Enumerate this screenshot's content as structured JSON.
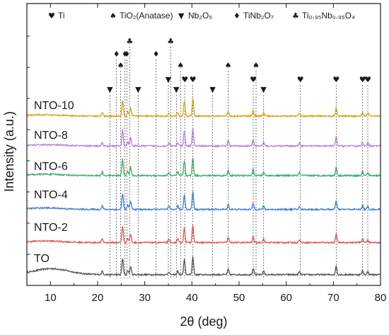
{
  "chart_data": {
    "type": "line",
    "xlabel": "2θ (deg)",
    "ylabel": "Intensity (a.u.)",
    "xlim": [
      5,
      80
    ],
    "xticks": [
      10,
      20,
      30,
      40,
      50,
      60,
      70,
      80
    ],
    "y_tick_labels_shown": false,
    "legend": [
      {
        "symbol": "♥",
        "label": "Ti"
      },
      {
        "symbol": "♠",
        "label": "TiO₂(Anatase)"
      },
      {
        "symbol": "▼",
        "label": "Nb₂O₅"
      },
      {
        "symbol": "♦",
        "label": "TiNb₂O₇"
      },
      {
        "symbol": "♣",
        "label": "Ti₀.₉₅Nb₀.₉₅O₄"
      }
    ],
    "legend_placement": "top",
    "series": [
      {
        "name": "TO",
        "color": "#555555",
        "offset": 0,
        "baseline": 1.0
      },
      {
        "name": "NTO-2",
        "color": "#e05555",
        "offset": 1,
        "baseline": 0.6
      },
      {
        "name": "NTO-4",
        "color": "#3a7fd6",
        "offset": 2,
        "baseline": 0.55
      },
      {
        "name": "NTO-6",
        "color": "#3daa6a",
        "offset": 3,
        "baseline": 0.5
      },
      {
        "name": "NTO-8",
        "color": "#b57ee0",
        "offset": 4,
        "baseline": 0.45
      },
      {
        "name": "NTO-10",
        "color": "#d4a418",
        "offset": 5,
        "baseline": 0.5
      }
    ],
    "peaks": [
      {
        "x": 21.0,
        "h": 1.2
      },
      {
        "x": 25.3,
        "h": 5.5
      },
      {
        "x": 26.4,
        "h": 1.4
      },
      {
        "x": 27.0,
        "h": 2.8
      },
      {
        "x": 35.1,
        "h": 1.0
      },
      {
        "x": 37.0,
        "h": 1.2
      },
      {
        "x": 38.4,
        "h": 5.0
      },
      {
        "x": 40.2,
        "h": 6.0
      },
      {
        "x": 47.7,
        "h": 1.8
      },
      {
        "x": 53.0,
        "h": 2.0
      },
      {
        "x": 55.2,
        "h": 1.2
      },
      {
        "x": 62.8,
        "h": 1.0
      },
      {
        "x": 70.6,
        "h": 3.0
      },
      {
        "x": 76.2,
        "h": 1.4
      },
      {
        "x": 77.3,
        "h": 1.0
      }
    ],
    "reference_markers": [
      {
        "x": 22.6,
        "symbol": "▼",
        "level": 0
      },
      {
        "x": 24.0,
        "symbol": "♦",
        "level": 3
      },
      {
        "x": 24.9,
        "symbol": "♠",
        "level": 2
      },
      {
        "x": 25.8,
        "symbol": "♦",
        "level": 3
      },
      {
        "x": 26.2,
        "symbol": "♦",
        "level": 3
      },
      {
        "x": 26.8,
        "symbol": "♣",
        "level": 4
      },
      {
        "x": 28.6,
        "symbol": "▼",
        "level": 0
      },
      {
        "x": 32.4,
        "symbol": "♦",
        "level": 3
      },
      {
        "x": 35.0,
        "symbol": "▼",
        "level": 1
      },
      {
        "x": 35.5,
        "symbol": "♣",
        "level": 4
      },
      {
        "x": 36.7,
        "symbol": "▼",
        "level": 0
      },
      {
        "x": 37.6,
        "symbol": "♠",
        "level": 2
      },
      {
        "x": 38.5,
        "symbol": "♥",
        "level": 1
      },
      {
        "x": 40.2,
        "symbol": "♥",
        "level": 1
      },
      {
        "x": 44.4,
        "symbol": "▼",
        "level": 0
      },
      {
        "x": 47.7,
        "symbol": "♠",
        "level": 2
      },
      {
        "x": 53.0,
        "symbol": "♥",
        "level": 1
      },
      {
        "x": 53.6,
        "symbol": "♠",
        "level": 2
      },
      {
        "x": 55.2,
        "symbol": "▼",
        "level": 0
      },
      {
        "x": 63.0,
        "symbol": "♥",
        "level": 1
      },
      {
        "x": 70.6,
        "symbol": "♥",
        "level": 1
      },
      {
        "x": 76.2,
        "symbol": "♥",
        "level": 1
      },
      {
        "x": 77.3,
        "symbol": "♥",
        "level": 1
      }
    ]
  }
}
